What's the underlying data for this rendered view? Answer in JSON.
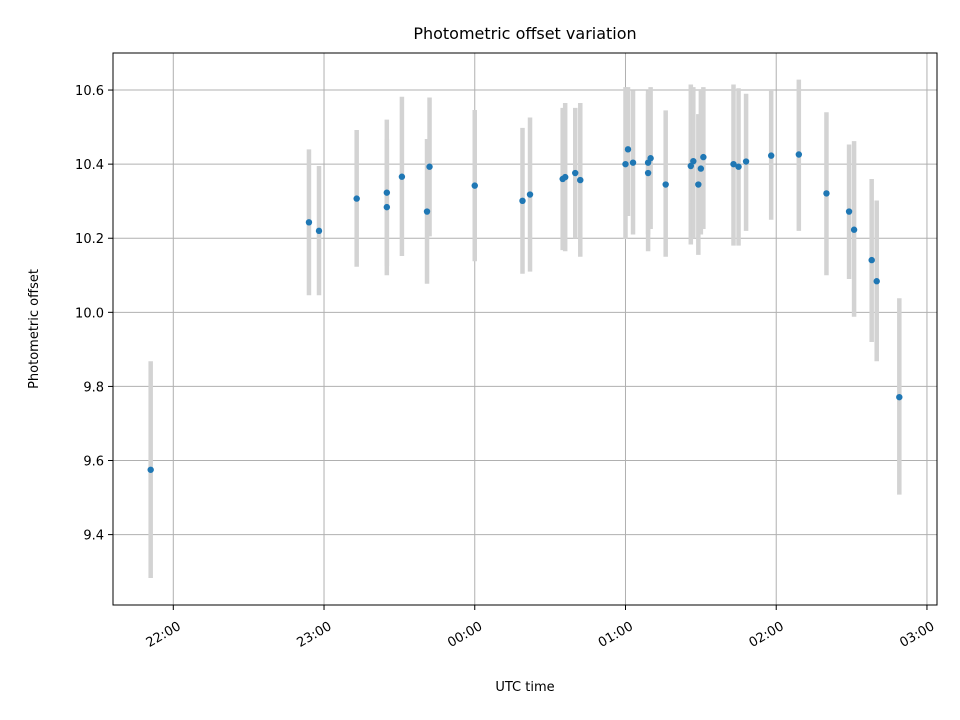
{
  "chart_data": {
    "type": "scatter",
    "title": "Photometric offset variation",
    "xlabel": "UTC time",
    "ylabel": "Photometric offset",
    "x_axis": {
      "kind": "time",
      "range": [
        "21:36",
        "03:04"
      ],
      "ticks": [
        "22:00",
        "23:00",
        "00:00",
        "01:00",
        "02:00",
        "03:00"
      ],
      "tick_rotation_deg": -30
    },
    "y_axis": {
      "range": [
        9.21,
        10.7
      ],
      "ticks": [
        9.4,
        9.6,
        9.8,
        10.0,
        10.2,
        10.4,
        10.6
      ],
      "tick_labels": [
        "9.4",
        "9.6",
        "9.8",
        "10.0",
        "10.2",
        "10.4",
        "10.6"
      ]
    },
    "grid": true,
    "legend": "none",
    "colors": {
      "point": "#1f77b4",
      "errorbar": "#d3d3d3",
      "grid": "#b0b0b0"
    },
    "series": [
      {
        "points": [
          {
            "time": "21:51",
            "y": 9.575,
            "ylow": 9.283,
            "yhigh": 9.868
          },
          {
            "time": "22:54",
            "y": 10.243,
            "ylow": 10.046,
            "yhigh": 10.44
          },
          {
            "time": "22:58",
            "y": 10.22,
            "ylow": 10.046,
            "yhigh": 10.395
          },
          {
            "time": "23:13",
            "y": 10.307,
            "ylow": 10.123,
            "yhigh": 10.492
          },
          {
            "time": "23:25",
            "y": 10.284,
            "ylow": 10.1,
            "yhigh": 10.468
          },
          {
            "time": "23:25",
            "y": 10.323,
            "ylow": 10.125,
            "yhigh": 10.52
          },
          {
            "time": "23:31",
            "y": 10.366,
            "ylow": 10.152,
            "yhigh": 10.582
          },
          {
            "time": "23:41",
            "y": 10.272,
            "ylow": 10.077,
            "yhigh": 10.468
          },
          {
            "time": "23:42",
            "y": 10.393,
            "ylow": 10.205,
            "yhigh": 10.58
          },
          {
            "time": "00:00",
            "y": 10.342,
            "ylow": 10.138,
            "yhigh": 10.546
          },
          {
            "time": "00:19",
            "y": 10.301,
            "ylow": 10.104,
            "yhigh": 10.498
          },
          {
            "time": "00:22",
            "y": 10.318,
            "ylow": 10.11,
            "yhigh": 10.526
          },
          {
            "time": "00:35",
            "y": 10.36,
            "ylow": 10.168,
            "yhigh": 10.552
          },
          {
            "time": "00:36",
            "y": 10.365,
            "ylow": 10.165,
            "yhigh": 10.565
          },
          {
            "time": "00:40",
            "y": 10.376,
            "ylow": 10.2,
            "yhigh": 10.552
          },
          {
            "time": "00:42",
            "y": 10.357,
            "ylow": 10.15,
            "yhigh": 10.565
          },
          {
            "time": "01:00",
            "y": 10.4,
            "ylow": 10.198,
            "yhigh": 10.608
          },
          {
            "time": "01:01",
            "y": 10.44,
            "ylow": 10.26,
            "yhigh": 10.608
          },
          {
            "time": "01:03",
            "y": 10.404,
            "ylow": 10.21,
            "yhigh": 10.598
          },
          {
            "time": "01:09",
            "y": 10.376,
            "ylow": 10.165,
            "yhigh": 10.59
          },
          {
            "time": "01:09",
            "y": 10.404,
            "ylow": 10.21,
            "yhigh": 10.598
          },
          {
            "time": "01:10",
            "y": 10.416,
            "ylow": 10.225,
            "yhigh": 10.608
          },
          {
            "time": "01:16",
            "y": 10.345,
            "ylow": 10.15,
            "yhigh": 10.545
          },
          {
            "time": "01:26",
            "y": 10.395,
            "ylow": 10.183,
            "yhigh": 10.615
          },
          {
            "time": "01:27",
            "y": 10.408,
            "ylow": 10.2,
            "yhigh": 10.608
          },
          {
            "time": "01:29",
            "y": 10.345,
            "ylow": 10.155,
            "yhigh": 10.535
          },
          {
            "time": "01:30",
            "y": 10.388,
            "ylow": 10.21,
            "yhigh": 10.6
          },
          {
            "time": "01:31",
            "y": 10.419,
            "ylow": 10.225,
            "yhigh": 10.608
          },
          {
            "time": "01:43",
            "y": 10.4,
            "ylow": 10.18,
            "yhigh": 10.615
          },
          {
            "time": "01:45",
            "y": 10.393,
            "ylow": 10.18,
            "yhigh": 10.605
          },
          {
            "time": "01:48",
            "y": 10.407,
            "ylow": 10.22,
            "yhigh": 10.59
          },
          {
            "time": "01:58",
            "y": 10.423,
            "ylow": 10.25,
            "yhigh": 10.6
          },
          {
            "time": "02:09",
            "y": 10.426,
            "ylow": 10.22,
            "yhigh": 10.628
          },
          {
            "time": "02:20",
            "y": 10.321,
            "ylow": 10.1,
            "yhigh": 10.54
          },
          {
            "time": "02:29",
            "y": 10.272,
            "ylow": 10.09,
            "yhigh": 10.453
          },
          {
            "time": "02:31",
            "y": 10.223,
            "ylow": 9.988,
            "yhigh": 10.462
          },
          {
            "time": "02:38",
            "y": 10.141,
            "ylow": 9.92,
            "yhigh": 10.36
          },
          {
            "time": "02:40",
            "y": 10.084,
            "ylow": 9.868,
            "yhigh": 10.302
          },
          {
            "time": "02:49",
            "y": 9.771,
            "ylow": 9.508,
            "yhigh": 10.038
          }
        ]
      }
    ]
  }
}
